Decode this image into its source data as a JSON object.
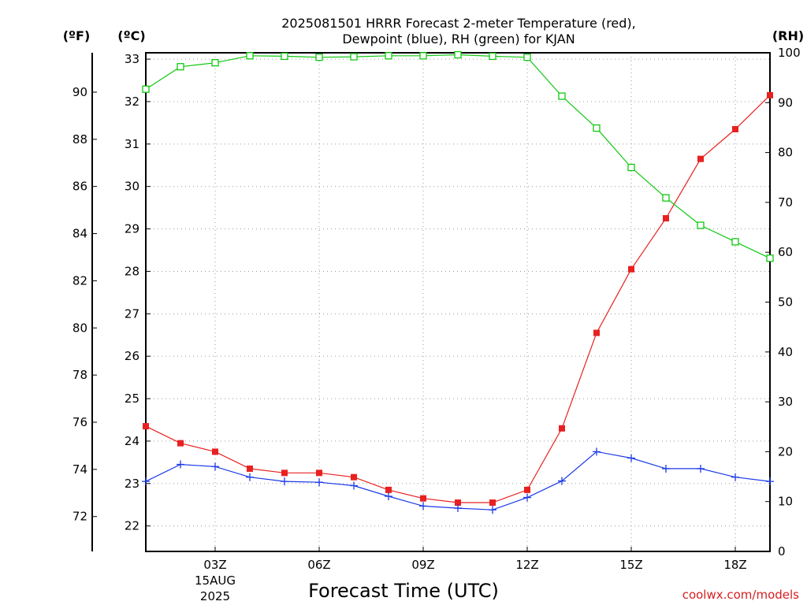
{
  "chart_data": {
    "type": "line",
    "title_line1": "2025081501 HRRR Forecast 2-meter Temperature (red),",
    "title_line2": "Dewpoint (blue), RH (green) for KJAN",
    "xlabel": "Forecast Time (UTC)",
    "credit": "coolwx.com/models",
    "units": {
      "f": "(ºF)",
      "c": "(ºC)",
      "rh": "(RH)"
    },
    "x": [
      "01Z",
      "02Z",
      "03Z",
      "04Z",
      "05Z",
      "06Z",
      "07Z",
      "08Z",
      "09Z",
      "10Z",
      "11Z",
      "12Z",
      "13Z",
      "14Z",
      "15Z",
      "16Z",
      "17Z",
      "18Z",
      "19Z"
    ],
    "x_ticks": [
      {
        "index": 2,
        "label": "03Z",
        "extra": [
          "15AUG",
          "2025"
        ]
      },
      {
        "index": 5,
        "label": "06Z"
      },
      {
        "index": 8,
        "label": "09Z"
      },
      {
        "index": 11,
        "label": "12Z"
      },
      {
        "index": 14,
        "label": "15Z"
      },
      {
        "index": 17,
        "label": "18Z"
      }
    ],
    "ylim_c": [
      21.4,
      33.15
    ],
    "ylim_rh": [
      0,
      100
    ],
    "yticks_c": [
      "22",
      "23",
      "24",
      "25",
      "26",
      "27",
      "28",
      "29",
      "30",
      "31",
      "32",
      "33"
    ],
    "yticks_f": [
      "72",
      "74",
      "76",
      "78",
      "80",
      "82",
      "84",
      "86",
      "88",
      "90"
    ],
    "yticks_rh": [
      "0",
      "10",
      "20",
      "30",
      "40",
      "50",
      "60",
      "70",
      "80",
      "90",
      "100"
    ],
    "grid": true,
    "series": [
      {
        "name": "Temperature",
        "axis": "c",
        "color": "#e82020",
        "marker": "filled-square",
        "values": [
          24.35,
          23.95,
          23.75,
          23.35,
          23.25,
          23.25,
          23.15,
          22.85,
          22.65,
          22.55,
          22.55,
          22.85,
          24.3,
          26.55,
          28.05,
          29.25,
          30.65,
          31.35,
          32.15
        ]
      },
      {
        "name": "Dewpoint",
        "axis": "c",
        "color": "#1c3ae8",
        "marker": "plus",
        "values": [
          23.05,
          23.45,
          23.4,
          23.15,
          23.05,
          23.03,
          22.95,
          22.7,
          22.47,
          22.42,
          22.38,
          22.67,
          23.06,
          23.75,
          23.6,
          23.35,
          23.35,
          23.15,
          23.05
        ]
      },
      {
        "name": "RH",
        "axis": "rh",
        "color": "#10c810",
        "marker": "open-square",
        "values": [
          92.7,
          97.2,
          98.0,
          99.4,
          99.3,
          99.1,
          99.2,
          99.4,
          99.4,
          99.6,
          99.3,
          99.1,
          91.3,
          84.9,
          77.0,
          70.9,
          65.4,
          62.1,
          58.8
        ]
      }
    ]
  }
}
